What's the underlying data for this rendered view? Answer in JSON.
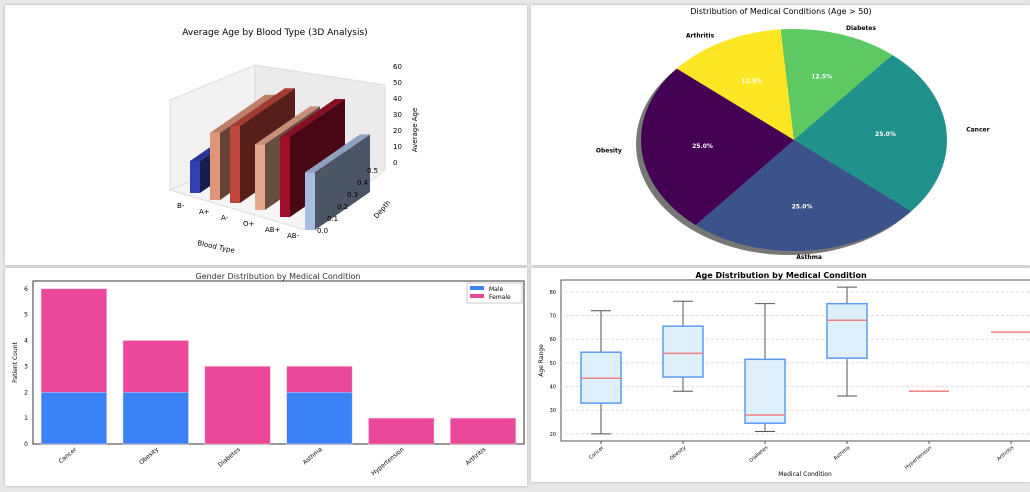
{
  "chart_data": [
    {
      "type": "bar3d",
      "title": "Average Age by Blood Type (3D Analysis)",
      "xlabel": "Blood Type",
      "ylabel": "Depth",
      "zlabel": "Average Age",
      "categories": [
        "B-",
        "A+",
        "A-",
        "O+",
        "AB+",
        "AB-"
      ],
      "values": [
        20,
        42,
        48,
        41,
        50,
        36
      ],
      "colors": [
        "#3040b0",
        "#e0957a",
        "#c0453a",
        "#e8a890",
        "#a0102a",
        "#a8bde0"
      ],
      "zticks": [
        "0",
        "10",
        "20",
        "30",
        "40",
        "50",
        "60"
      ],
      "yticks": [
        "0.0",
        "0.1",
        "0.2",
        "0.3",
        "0.4",
        "0.5"
      ]
    },
    {
      "type": "pie",
      "title": "Distribution of Medical Conditions (Age > 50)",
      "labels": [
        "Diabetes",
        "Cancer",
        "Asthma",
        "Obesity",
        "Arthritis"
      ],
      "values": [
        12.5,
        25.0,
        25.0,
        25.0,
        12.5
      ],
      "pct_labels": [
        "12.5%",
        "25.0%",
        "25.0%",
        "25.0%",
        "12.5%"
      ],
      "colors": [
        "#5ec962",
        "#21918c",
        "#3b528b",
        "#440154",
        "#fde725"
      ]
    },
    {
      "type": "bar",
      "stacked": true,
      "title": "Gender Distribution by Medical Condition",
      "xlabel": "",
      "ylabel": "Patient Count",
      "categories": [
        "Cancer",
        "Obesity",
        "Diabetes",
        "Asthma",
        "Hypertension",
        "Arthritis"
      ],
      "series": [
        {
          "name": "Male",
          "values": [
            2,
            2,
            0,
            2,
            0,
            0
          ],
          "color": "#3b82f6"
        },
        {
          "name": "Female",
          "values": [
            4,
            2,
            3,
            1,
            1,
            1
          ],
          "color": "#ec4899"
        }
      ],
      "ylim": [
        0,
        6.3
      ],
      "yticks": [
        "0",
        "1",
        "2",
        "3",
        "4",
        "5",
        "6"
      ],
      "legend": "top-right"
    },
    {
      "type": "box",
      "title": "Age Distribution by Medical Condition",
      "xlabel": "Medical Condition",
      "ylabel": "Age Range",
      "categories": [
        "Cancer",
        "Obesity",
        "Diabetes",
        "Asthma",
        "Hypertension",
        "Arthritis"
      ],
      "boxes": [
        {
          "min": 20,
          "q1": 33,
          "median": 43.5,
          "q3": 54.5,
          "max": 72
        },
        {
          "min": 38,
          "q1": 44,
          "median": 54,
          "q3": 65.5,
          "max": 76
        },
        {
          "min": 21,
          "q1": 24.5,
          "median": 28,
          "q3": 51.5,
          "max": 75
        },
        {
          "min": 36,
          "q1": 52,
          "median": 68,
          "q3": 75,
          "max": 82
        },
        {
          "min": 38,
          "q1": 38,
          "median": 38,
          "q3": 38,
          "max": 38
        },
        {
          "min": 63,
          "q1": 63,
          "median": 63,
          "q3": 63,
          "max": 63
        }
      ],
      "ylim": [
        17,
        85
      ],
      "yticks": [
        "20",
        "30",
        "40",
        "50",
        "60",
        "70",
        "80"
      ]
    }
  ]
}
